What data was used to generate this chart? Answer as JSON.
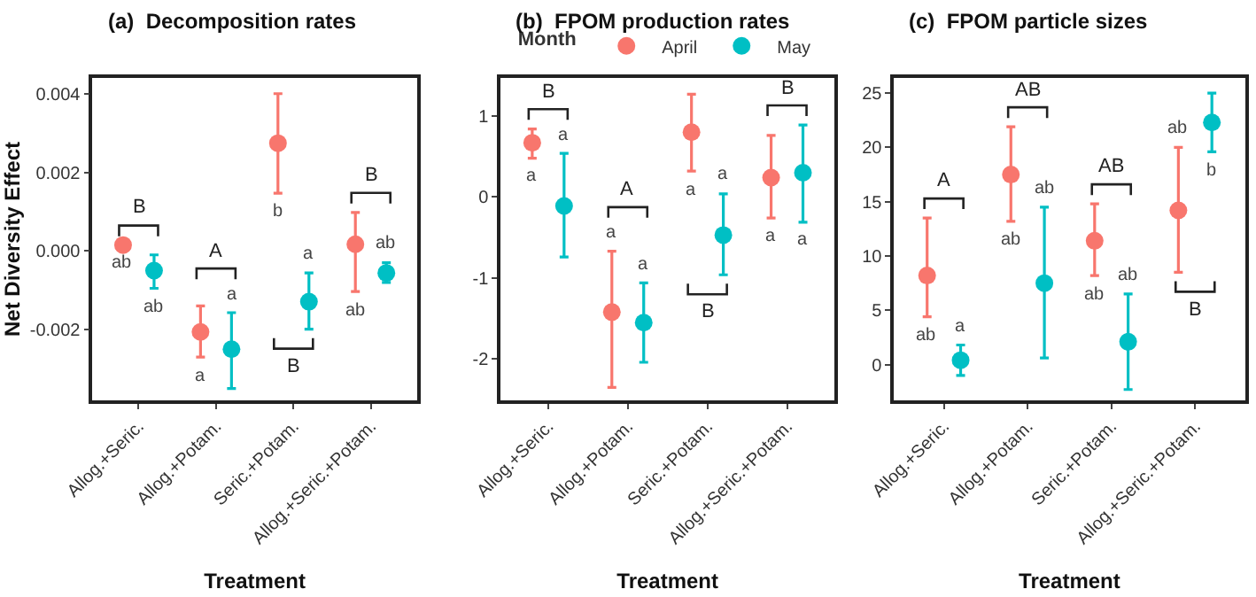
{
  "chart_data": [
    {
      "type": "scatter",
      "title": "(a)  Decomposition rates",
      "xlabel": "Treatment",
      "ylabel": "Net Diversity Effect",
      "categories": [
        "Allog.+Seric.",
        "Allog.+Potam.",
        "Seric.+Potam.",
        "Allog.+Seric.+Potam."
      ],
      "series": [
        {
          "color": "#f8766d",
          "values": [
            0.00015,
            -0.00206,
            0.00274,
            0.00017
          ],
          "errors": [
            null,
            [
              -0.0027,
              -0.0014
            ],
            [
              0.00147,
              0.004
            ],
            [
              -0.00103,
              0.00098
            ]
          ]
        },
        {
          "color": "#00bfc4",
          "values": [
            -0.0005,
            -0.0025,
            -0.00129,
            -0.00056
          ],
          "errors": [
            [
              -0.00095,
              -0.0001
            ],
            [
              -0.0035,
              -0.00157
            ],
            [
              -0.00199,
              -0.00056
            ],
            [
              -0.0008,
              -0.0003
            ]
          ]
        }
      ],
      "ylim": [
        -0.0038,
        0.0044
      ],
      "yticks": [
        {
          "value": -0.002,
          "label": "-0.002"
        },
        {
          "value": 0,
          "label": "0.000"
        },
        {
          "value": 0.002,
          "label": "0.002"
        },
        {
          "value": 0.004,
          "label": "0.004"
        }
      ],
      "marker": "circle",
      "annotations": [
        "B",
        "A",
        "B",
        "B",
        "ab",
        "a",
        "b",
        "ab",
        "ab",
        "a",
        "a",
        "ab"
      ]
    },
    {
      "type": "scatter",
      "title": "(b)  FPOM production rates",
      "xlabel": "Treatment",
      "legend_title": "Month",
      "legend": "top",
      "categories": [
        "Allog.+Seric.",
        "Allog.+Potam.",
        "Seric.+Potam.",
        "Allog.+Seric.+Potam."
      ],
      "series": [
        {
          "name": "April",
          "color": "#f8766d",
          "values": [
            0.67,
            -1.42,
            0.8,
            0.24
          ],
          "errors": [
            [
              0.48,
              0.84
            ],
            [
              -2.35,
              -0.67
            ],
            [
              0.32,
              1.27
            ],
            [
              -0.26,
              0.76
            ]
          ]
        },
        {
          "name": "May",
          "color": "#00bfc4",
          "values": [
            -0.11,
            -1.55,
            -0.47,
            0.3
          ],
          "errors": [
            [
              -0.74,
              0.54
            ],
            [
              -2.04,
              -1.06
            ],
            [
              -0.96,
              0.04
            ],
            [
              -0.31,
              0.89
            ]
          ]
        }
      ],
      "ylim": [
        -2.51,
        1.47
      ],
      "yticks": [
        -2,
        -1,
        0,
        1
      ],
      "marker": "circle",
      "annotations": [
        "B",
        "A",
        "B",
        "B",
        "a",
        "a",
        "a",
        "a",
        "a",
        "a",
        "a",
        "a"
      ]
    },
    {
      "type": "scatter",
      "title": "(c)  FPOM particle sizes",
      "xlabel": "Treatment",
      "categories": [
        "Allog.+Seric.",
        "Allog.+Potam.",
        "Seric.+Potam.",
        "Allog.+Seric.+Potam."
      ],
      "series": [
        {
          "color": "#f8766d",
          "values": [
            8.2,
            17.5,
            11.4,
            14.2
          ],
          "errors": [
            [
              4.4,
              13.5
            ],
            [
              13.2,
              21.9
            ],
            [
              8.2,
              14.8
            ],
            [
              8.5,
              20.0
            ]
          ]
        },
        {
          "color": "#00bfc4",
          "values": [
            0.4,
            7.5,
            2.1,
            22.3
          ],
          "errors": [
            [
              -1.0,
              1.8
            ],
            [
              0.6,
              14.5
            ],
            [
              -2.3,
              6.5
            ],
            [
              19.6,
              25.0
            ]
          ]
        }
      ],
      "ylim": [
        -3.3,
        26.4
      ],
      "yticks": [
        0,
        5,
        10,
        15,
        20,
        25
      ],
      "marker": "circle",
      "annotations": [
        "A",
        "AB",
        "AB",
        "B",
        "ab",
        "ab",
        "ab",
        "ab",
        "a",
        "ab",
        "ab",
        "b"
      ]
    }
  ]
}
